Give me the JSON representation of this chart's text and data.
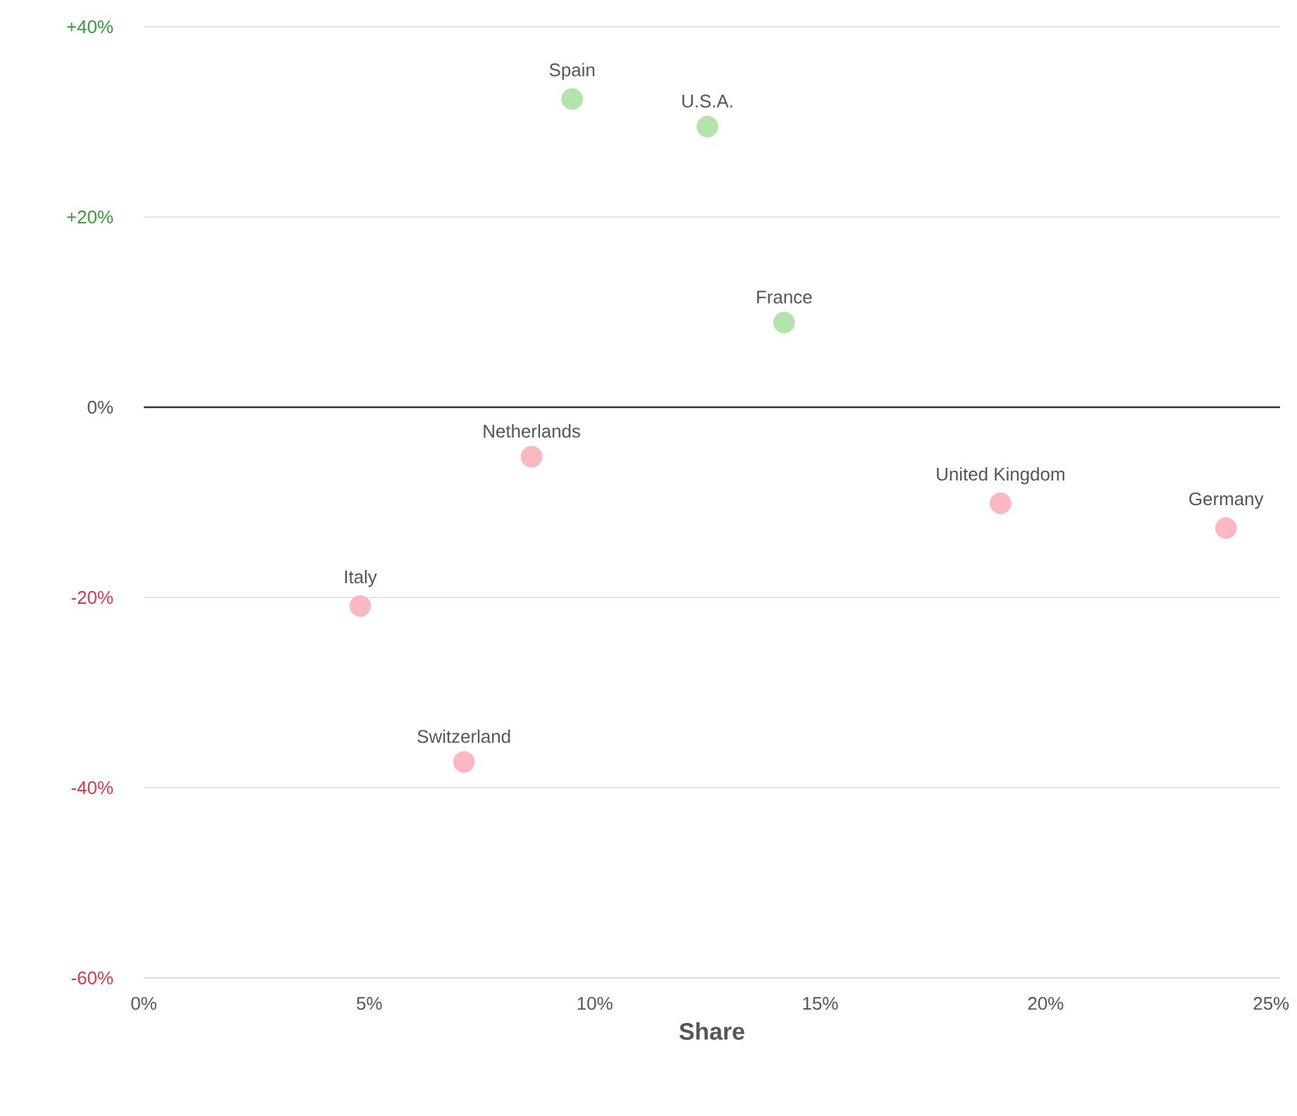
{
  "chart_data": {
    "type": "scatter",
    "xlabel": "Share",
    "xlim": [
      0,
      25.2
    ],
    "ylim": [
      -60,
      40
    ],
    "xticks": [
      {
        "value": 0,
        "label": "0%"
      },
      {
        "value": 5,
        "label": "5%"
      },
      {
        "value": 10,
        "label": "10%"
      },
      {
        "value": 15,
        "label": "15%"
      },
      {
        "value": 20,
        "label": "20%"
      },
      {
        "value": 25,
        "label": "25%"
      }
    ],
    "yticks": [
      {
        "value": -60,
        "label": "-60%"
      },
      {
        "value": -40,
        "label": "-40%"
      },
      {
        "value": -20,
        "label": "-20%"
      },
      {
        "value": 0,
        "label": "0%"
      },
      {
        "value": 20,
        "label": "+20%"
      },
      {
        "value": 40,
        "label": "+40%"
      }
    ],
    "grid": "y",
    "ref_lines": [
      {
        "axis": "y",
        "value": 0,
        "color": "#333333"
      }
    ],
    "series": [
      {
        "name": "Spain",
        "color": "#b5e3ad",
        "x": [
          9.5
        ],
        "values": [
          32.4
        ]
      },
      {
        "name": "U.S.A.",
        "color": "#b5e3ad",
        "x": [
          12.5
        ],
        "values": [
          29.5
        ]
      },
      {
        "name": "France",
        "color": "#b5e3ad",
        "x": [
          14.2
        ],
        "values": [
          8.9
        ]
      },
      {
        "name": "Netherlands",
        "color": "#f9b8c2",
        "x": [
          8.6
        ],
        "values": [
          -5.2
        ]
      },
      {
        "name": "United Kingdom",
        "color": "#f9b8c2",
        "x": [
          19.0
        ],
        "values": [
          -10.1
        ]
      },
      {
        "name": "Germany",
        "color": "#f9b8c2",
        "x": [
          24.0
        ],
        "values": [
          -12.7
        ]
      },
      {
        "name": "Italy",
        "color": "#f9b8c2",
        "x": [
          4.8
        ],
        "values": [
          -20.9
        ]
      },
      {
        "name": "Switzerland",
        "color": "#f9b8c2",
        "x": [
          7.1
        ],
        "values": [
          -37.3
        ]
      }
    ]
  }
}
